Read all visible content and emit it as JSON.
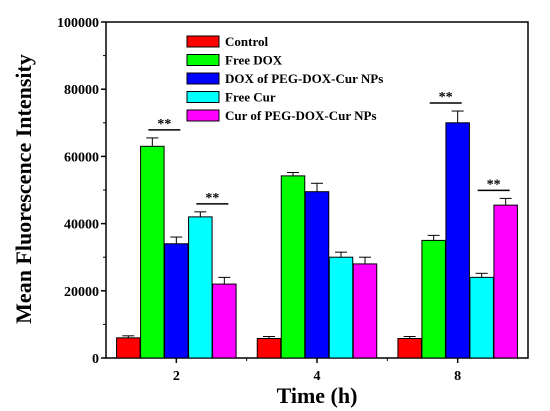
{
  "chart_data": {
    "type": "bar",
    "title": "",
    "xlabel": "Time (h)",
    "ylabel": "Mean Fluorescence Intensity",
    "ylim": [
      0,
      100000
    ],
    "yticks": [
      "0",
      "20000",
      "40000",
      "60000",
      "80000",
      "100000"
    ],
    "categories": [
      "2",
      "4",
      "8"
    ],
    "series": [
      {
        "name": "Control",
        "color": "#ff0000",
        "values": [
          6000,
          5800,
          5800
        ],
        "errors": [
          600,
          600,
          600
        ]
      },
      {
        "name": "Free DOX",
        "color": "#00ff00",
        "values": [
          63000,
          54200,
          35000
        ],
        "errors": [
          2500,
          1000,
          1500
        ]
      },
      {
        "name": "DOX of PEG-DOX-Cur NPs",
        "color": "#0000ff",
        "values": [
          34000,
          49500,
          70000
        ],
        "errors": [
          2000,
          2500,
          3500
        ]
      },
      {
        "name": "Free Cur",
        "color": "#00ffff",
        "values": [
          42000,
          30000,
          24000
        ],
        "errors": [
          1500,
          1500,
          1200
        ]
      },
      {
        "name": "Cur of PEG-DOX-Cur NPs",
        "color": "#ff00ff",
        "values": [
          22000,
          28000,
          45500
        ],
        "errors": [
          2000,
          2000,
          2000
        ]
      }
    ],
    "legend_position": "top-left",
    "annotations": [
      {
        "text": "**",
        "category_index": 0,
        "between": [
          1,
          2
        ]
      },
      {
        "text": "**",
        "category_index": 0,
        "between": [
          3,
          4
        ]
      },
      {
        "text": "**",
        "category_index": 2,
        "between": [
          1,
          2
        ]
      },
      {
        "text": "**",
        "category_index": 2,
        "between": [
          3,
          4
        ]
      }
    ]
  }
}
